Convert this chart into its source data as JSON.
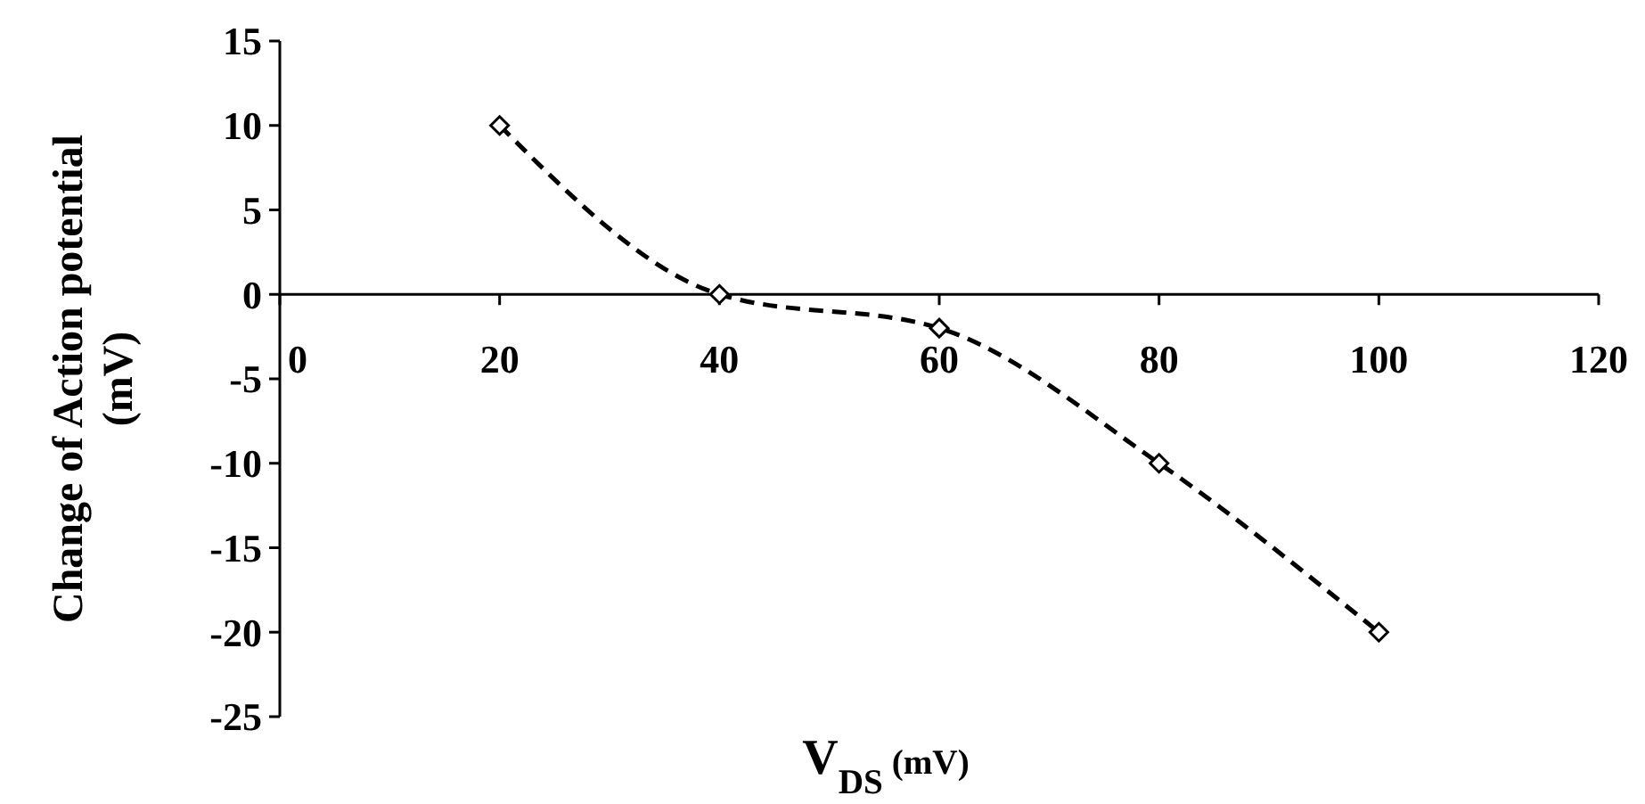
{
  "chart_data": {
    "type": "line",
    "xlabel": "V$_{DS}$ (mV)",
    "ylabel": "Change of Action potential (mV)",
    "x": [
      20,
      40,
      60,
      80,
      100
    ],
    "series": [
      {
        "color": "#000000",
        "values": [
          10,
          0,
          -2,
          -10,
          -20
        ]
      }
    ],
    "xlim": [
      0,
      120
    ],
    "xticks": [
      0,
      20,
      40,
      60,
      80,
      100,
      120
    ],
    "ylim": [
      -25,
      15
    ],
    "yticks": [
      -25,
      -20,
      -15,
      -10,
      -5,
      0,
      5,
      10,
      15
    ],
    "marker": "diamond",
    "line_style": "dashed",
    "grid": false
  }
}
